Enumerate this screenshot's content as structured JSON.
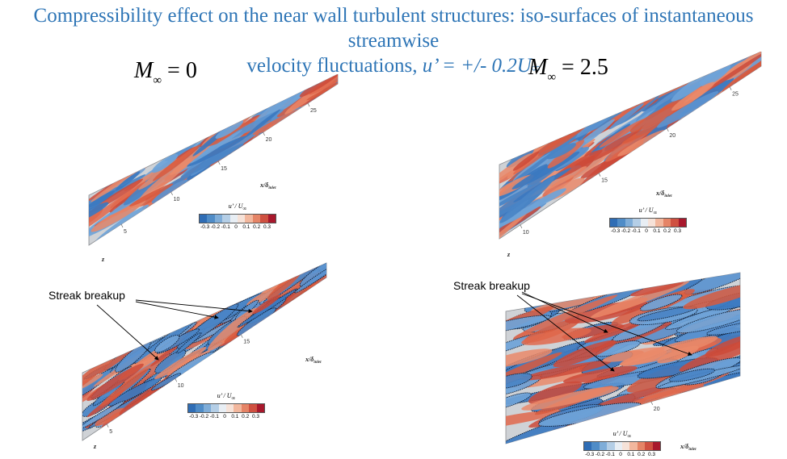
{
  "title": {
    "line1": "Compressibility effect on the near wall turbulent structures: iso-surfaces of instantaneous streamwise",
    "line2_text": "velocity fluctuations, ",
    "line2_symbol": "u’ = +/- 0.2U",
    "line2_sub": "∞"
  },
  "cases": [
    {
      "m": "M",
      "sub": "∞",
      "eq": " = 0"
    },
    {
      "m": "M",
      "sub": "∞",
      "eq": " = 2.5"
    }
  ],
  "colorbar": {
    "title": "u’ / U",
    "title_sub": "∞",
    "colors": [
      "#2f6db5",
      "#4f8cc7",
      "#7fadd8",
      "#b4cee6",
      "#e8eef4",
      "#f6e2d8",
      "#f2b79d",
      "#e58466",
      "#cf5040",
      "#a8182c"
    ],
    "ticks": [
      "-0.3",
      "-0.2",
      "-0.1",
      "0",
      "0.1",
      "0.2",
      "0.3"
    ]
  },
  "axes": {
    "x_label": "x/δ",
    "x_sub": "inlet",
    "z_label": "z",
    "panel_tl_ticks": [
      "5",
      "10",
      "15",
      "20",
      "25"
    ],
    "panel_tr_ticks": [
      "10",
      "15",
      "20",
      "25"
    ],
    "panel_bl_ticks": [
      "5",
      "10",
      "15"
    ],
    "panel_br_ticks": [
      "20"
    ]
  },
  "annotations": {
    "left": "Streak breakup",
    "right": "Streak breakup"
  }
}
